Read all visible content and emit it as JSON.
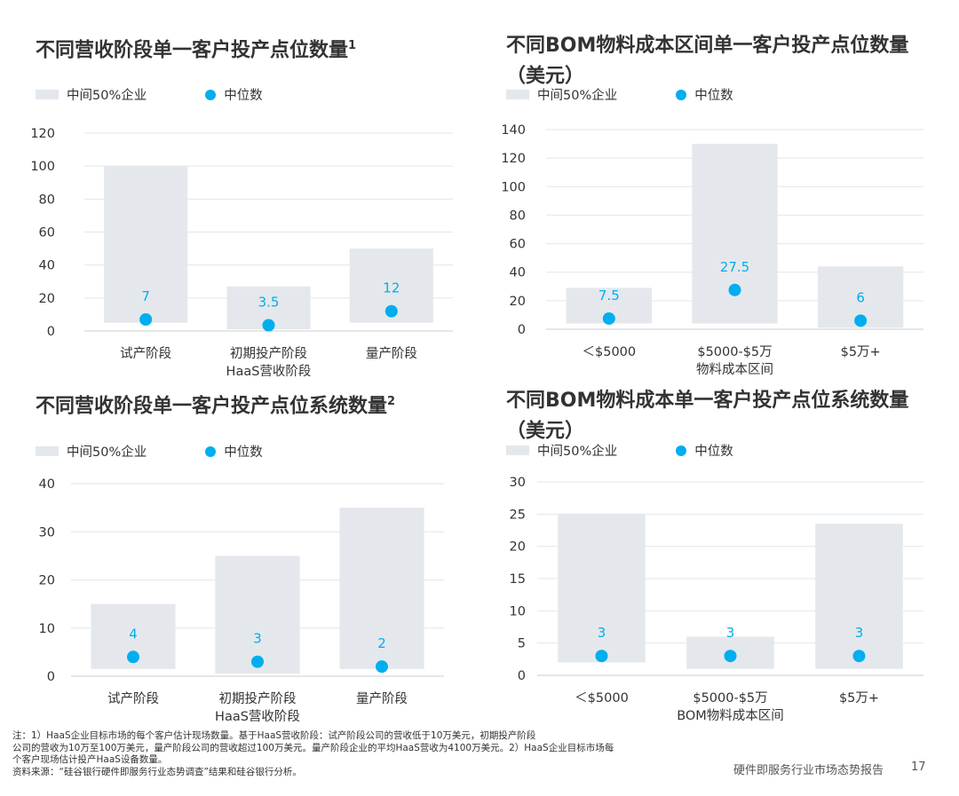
{
  "legend": {
    "range_label": "中间50%企业",
    "median_label": "中位数"
  },
  "colors": {
    "range": "#e4e8ec",
    "median": "#00aeef",
    "grid": "#e2e6e9",
    "axis": "#c9cdd1"
  },
  "panels": [
    {
      "title": "不同营收阶段单一客户投产点位数量",
      "title_sup": "1",
      "chart_data": {
        "type": "bar",
        "title": "不同营收阶段单一客户投产点位数量",
        "categories": [
          "试产阶段",
          "初期投产阶段",
          "量产阶段"
        ],
        "category_sublabels": [
          "",
          "HaaS营收阶段",
          ""
        ],
        "xlabel": "",
        "ylabel": "",
        "ylim": [
          0,
          120
        ],
        "yticks": [
          0,
          20,
          40,
          60,
          80,
          100,
          120
        ],
        "grid": true,
        "range_low": [
          5,
          1,
          5
        ],
        "range_high": [
          100,
          27,
          50
        ],
        "median": [
          7,
          3.5,
          12
        ],
        "median_labels": [
          "7",
          "3.5",
          "12"
        ]
      }
    },
    {
      "title": "不同BOM物料成本区间单一客户投产点位数量（美元）",
      "title_sup": "",
      "chart_data": {
        "type": "bar",
        "title": "不同BOM物料成本区间单一客户投产点位数量（美元）",
        "categories": [
          "＜$5000",
          "$5000-$5万",
          "$5万+"
        ],
        "category_sublabels": [
          "",
          "物料成本区间",
          ""
        ],
        "xlabel": "",
        "ylabel": "",
        "ylim": [
          0,
          140
        ],
        "yticks": [
          0,
          20,
          40,
          60,
          80,
          100,
          120,
          140
        ],
        "grid": true,
        "range_low": [
          4,
          4,
          1
        ],
        "range_high": [
          29,
          130,
          44
        ],
        "median": [
          7.5,
          27.5,
          6
        ],
        "median_labels": [
          "7.5",
          "27.5",
          "6"
        ]
      }
    },
    {
      "title": "不同营收阶段单一客户投产点位系统数量",
      "title_sup": "2",
      "chart_data": {
        "type": "bar",
        "title": "不同营收阶段单一客户投产点位系统数量",
        "categories": [
          "试产阶段",
          "初期投产阶段",
          "量产阶段"
        ],
        "category_sublabels": [
          "",
          "HaaS营收阶段",
          ""
        ],
        "xlabel": "",
        "ylabel": "",
        "ylim": [
          0,
          40
        ],
        "yticks": [
          0,
          10,
          20,
          30,
          40
        ],
        "grid": true,
        "range_low": [
          1.5,
          0.5,
          1.5
        ],
        "range_high": [
          15,
          25,
          35
        ],
        "median": [
          4,
          3,
          2
        ],
        "median_labels": [
          "4",
          "3",
          "2"
        ]
      }
    },
    {
      "title": "不同BOM物料成本单一客户投产点位系统数量（美元）",
      "title_sup": "",
      "chart_data": {
        "type": "bar",
        "title": "不同BOM物料成本单一客户投产点位系统数量（美元）",
        "categories": [
          "＜$5000",
          "$5000-$5万",
          "$5万+"
        ],
        "category_sublabels": [
          "",
          "BOM物料成本区间",
          ""
        ],
        "xlabel": "",
        "ylabel": "",
        "ylim": [
          0,
          30
        ],
        "yticks": [
          0,
          5,
          10,
          15,
          20,
          25,
          30
        ],
        "grid": true,
        "range_low": [
          2,
          1,
          1
        ],
        "range_high": [
          25,
          6,
          23.5
        ],
        "median": [
          3,
          3,
          3
        ],
        "median_labels": [
          "3",
          "3",
          "3"
        ]
      }
    }
  ],
  "footer": {
    "note_lines": [
      "注：1）HaaS企业目标市场的每个客户估计现场数量。基于HaaS营收阶段：试产阶段公司的营收低于10万美元，初期投产阶段",
      "公司的营收为10万至100万美元，量产阶段公司的营收超过100万美元。量产阶段企业的平均HaaS营收为4100万美元。2）HaaS企业目标市场每",
      "个客户现场估计投产HaaS设备数量。",
      "资料来源：“硅谷银行硬件即服务行业态势调查”结果和硅谷银行分析。"
    ],
    "report_name": "硬件即服务行业市场态势报告",
    "page_number": "17"
  }
}
